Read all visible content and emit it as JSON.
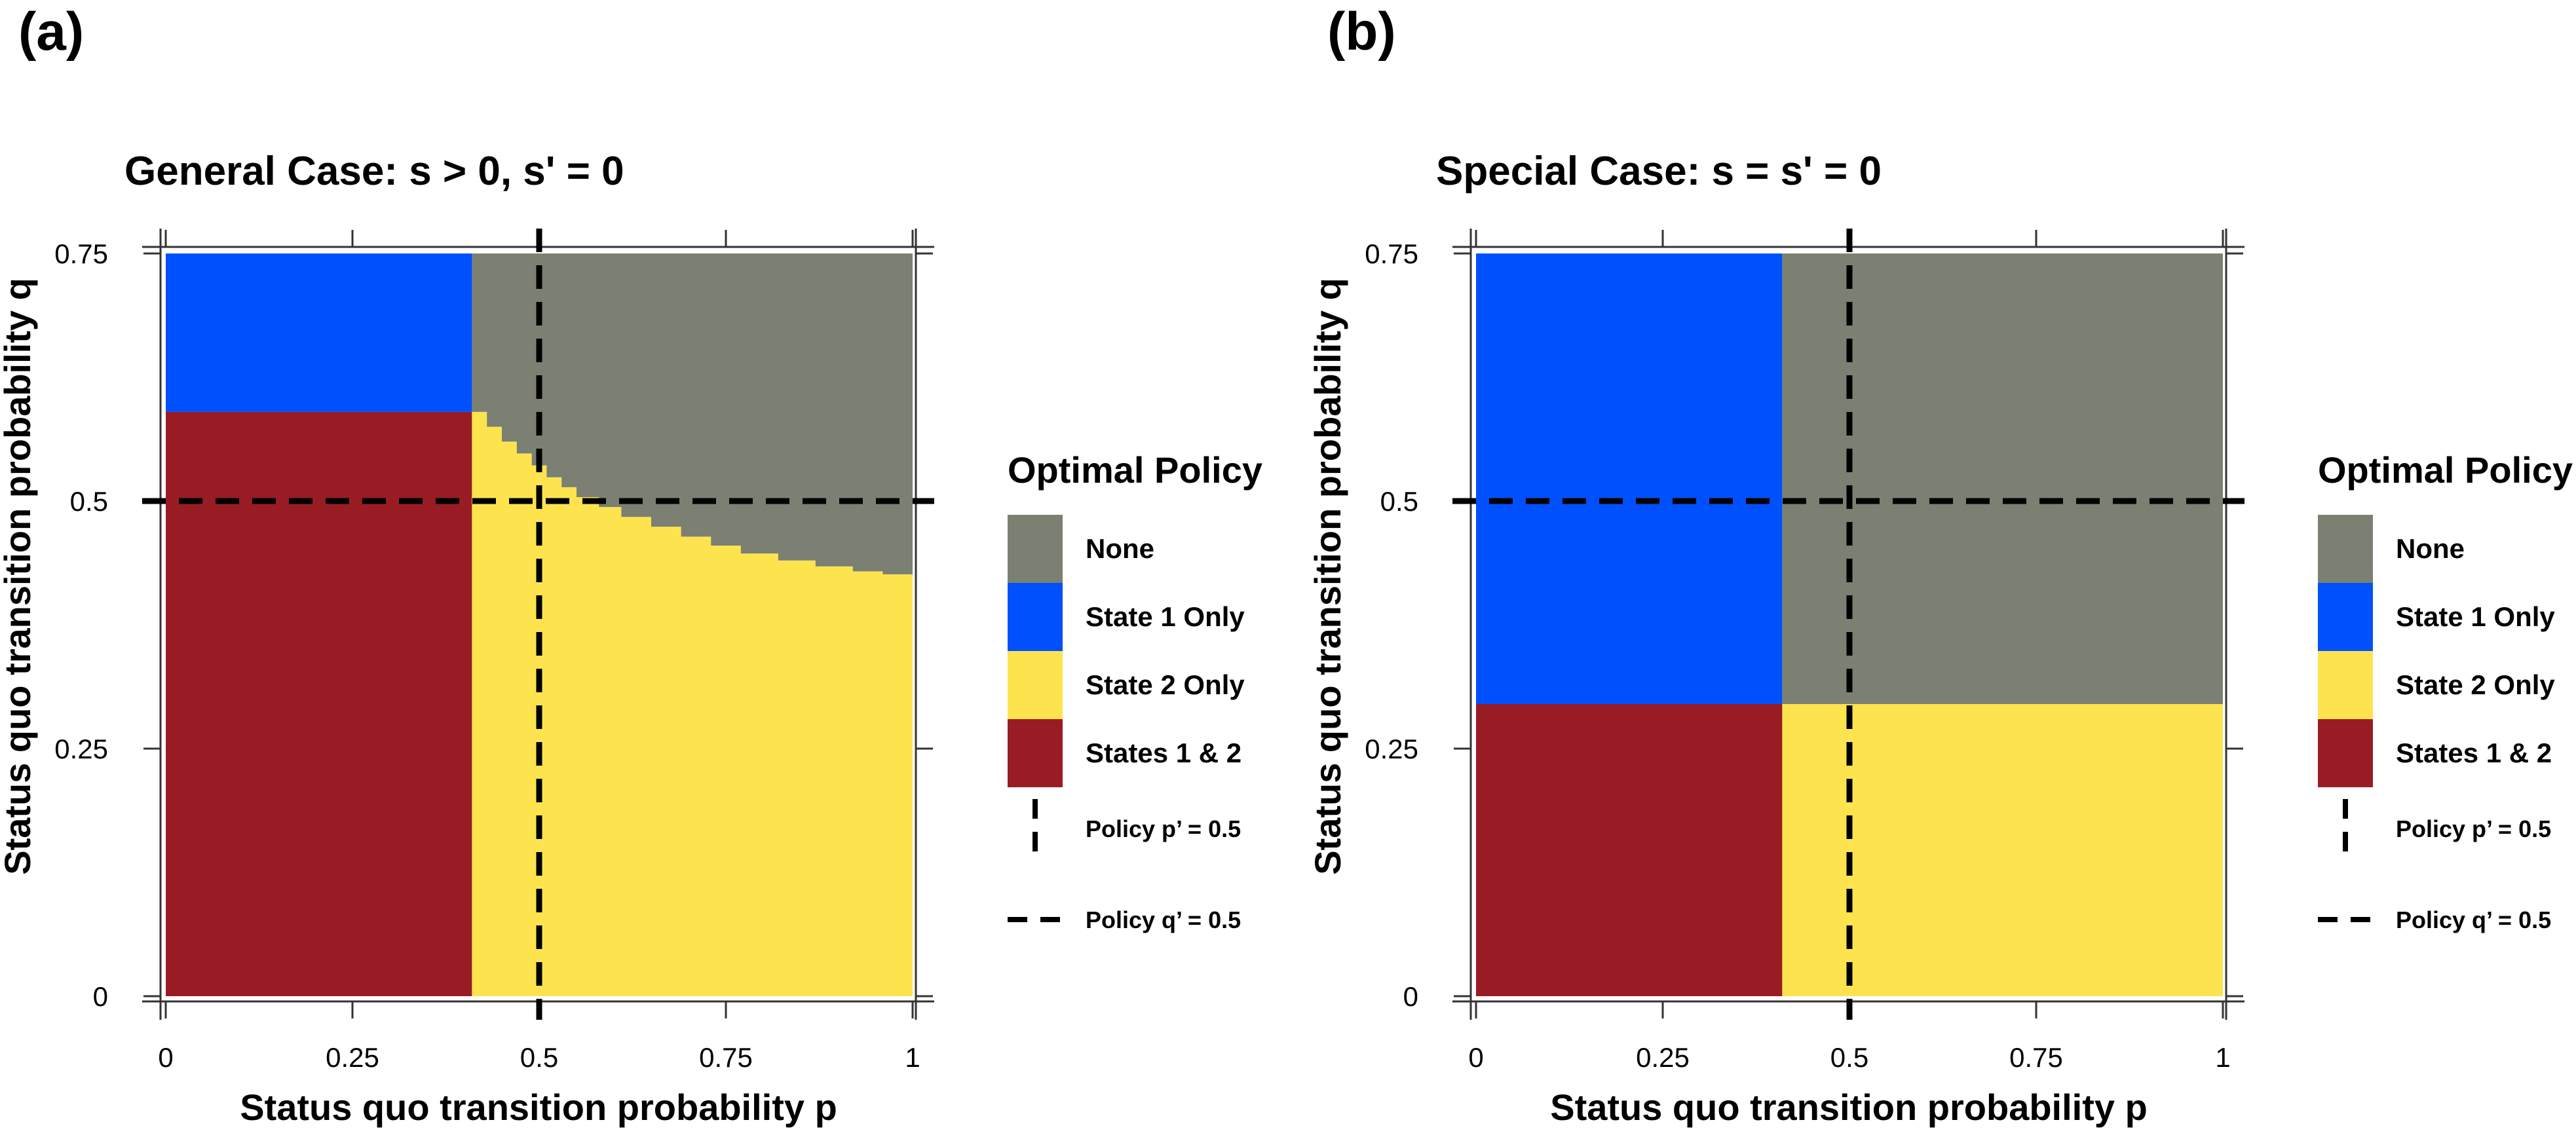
{
  "colors": {
    "none": "#7b8072",
    "state1": "#0050fd",
    "state2": "#fde44e",
    "both": "#991c24",
    "axis": "#333333"
  },
  "legend": {
    "title": "Optimal Policy",
    "items": [
      {
        "key": "none",
        "label": "None"
      },
      {
        "key": "state1",
        "label": "State 1 Only"
      },
      {
        "key": "state2",
        "label": "State 2 Only"
      },
      {
        "key": "both",
        "label": "States 1 & 2"
      }
    ],
    "policy_p_label": "Policy p’ = 0.5",
    "policy_q_label": "Policy q’ = 0.5"
  },
  "chart_data": [
    {
      "type": "heatmap",
      "panel": "(a)",
      "title": "General Case: s > 0, s' = 0",
      "xlabel": "Status quo transition probability p",
      "ylabel": "Status quo transition probability q",
      "xlim": [
        0,
        1
      ],
      "ylim": [
        0,
        0.75
      ],
      "xticks": [
        0,
        0.25,
        0.5,
        0.75,
        1
      ],
      "xtick_labels": [
        "0",
        "0.25",
        "0.5",
        "0.75",
        "1"
      ],
      "yticks": [
        0,
        0.25,
        0.5,
        0.75
      ],
      "ytick_labels": [
        "0",
        "0.25",
        "0.5",
        "0.75"
      ],
      "policy_p": 0.5,
      "policy_q": 0.5,
      "p_threshold": 0.41,
      "q_threshold_low_p": 0.59,
      "boundary_state2_none": [
        [
          0.41,
          0.59
        ],
        [
          0.43,
          0.575
        ],
        [
          0.45,
          0.56
        ],
        [
          0.47,
          0.548
        ],
        [
          0.49,
          0.536
        ],
        [
          0.51,
          0.524
        ],
        [
          0.53,
          0.514
        ],
        [
          0.55,
          0.504
        ],
        [
          0.58,
          0.494
        ],
        [
          0.61,
          0.484
        ],
        [
          0.65,
          0.474
        ],
        [
          0.69,
          0.464
        ],
        [
          0.73,
          0.455
        ],
        [
          0.77,
          0.447
        ],
        [
          0.82,
          0.44
        ],
        [
          0.87,
          0.434
        ],
        [
          0.92,
          0.429
        ],
        [
          0.96,
          0.426
        ],
        [
          0.99,
          0.426
        ]
      ],
      "regions": [
        {
          "policy": "States 1 & 2",
          "p": [
            0,
            0.41
          ],
          "q": [
            0,
            0.59
          ]
        },
        {
          "policy": "State 1 Only",
          "p": [
            0,
            0.41
          ],
          "q": [
            0.59,
            0.75
          ]
        },
        {
          "policy": "State 2 Only",
          "p": [
            0.41,
            1
          ],
          "q": [
            0,
            "boundary"
          ]
        },
        {
          "policy": "None",
          "p": [
            0.41,
            1
          ],
          "q": [
            "boundary",
            0.75
          ]
        }
      ]
    },
    {
      "type": "heatmap",
      "panel": "(b)",
      "title": "Special Case: s = s' = 0",
      "xlabel": "Status quo transition probability p",
      "ylabel": "Status quo transition probability q",
      "xlim": [
        0,
        1
      ],
      "ylim": [
        0,
        0.75
      ],
      "xticks": [
        0,
        0.25,
        0.5,
        0.75,
        1
      ],
      "xtick_labels": [
        "0",
        "0.25",
        "0.5",
        "0.75",
        "1"
      ],
      "yticks": [
        0,
        0.25,
        0.5,
        0.75
      ],
      "ytick_labels": [
        "0",
        "0.25",
        "0.5",
        "0.75"
      ],
      "policy_p": 0.5,
      "policy_q": 0.5,
      "p_threshold": 0.41,
      "q_threshold": 0.295,
      "regions": [
        {
          "policy": "States 1 & 2",
          "p": [
            0,
            0.41
          ],
          "q": [
            0,
            0.295
          ]
        },
        {
          "policy": "State 1 Only",
          "p": [
            0,
            0.41
          ],
          "q": [
            0.295,
            0.75
          ]
        },
        {
          "policy": "State 2 Only",
          "p": [
            0.41,
            1
          ],
          "q": [
            0,
            0.295
          ]
        },
        {
          "policy": "None",
          "p": [
            0.41,
            1
          ],
          "q": [
            0.295,
            0.75
          ]
        }
      ]
    }
  ]
}
